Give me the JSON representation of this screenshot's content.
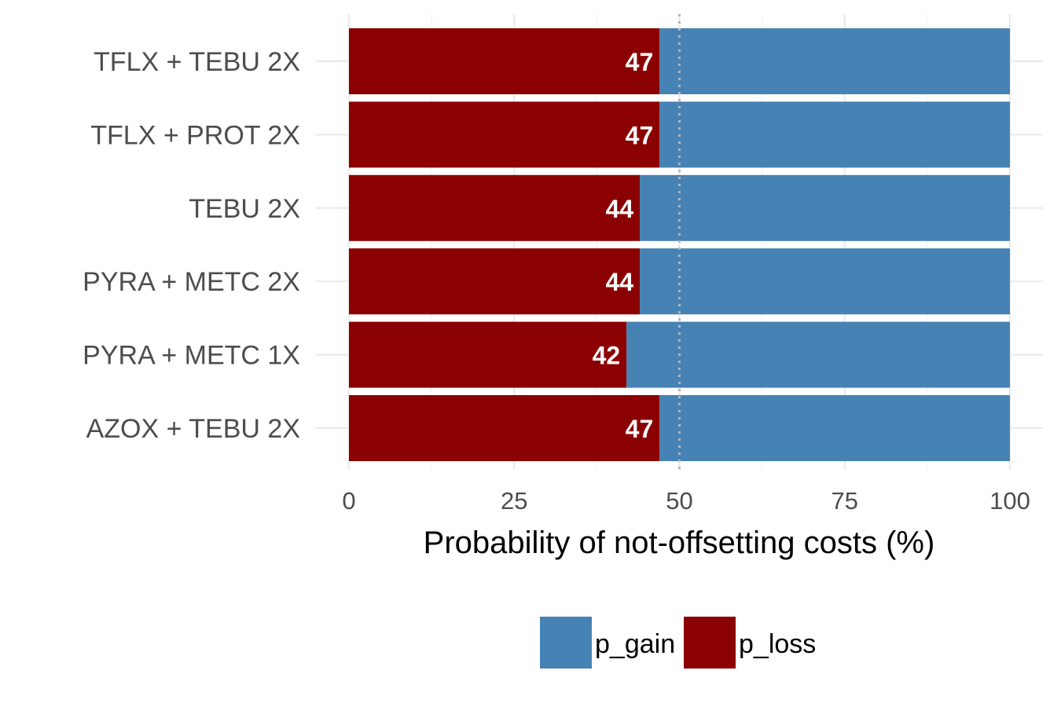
{
  "chart_data": {
    "type": "bar",
    "orientation": "horizontal",
    "stacked": true,
    "categories": [
      "TFLX + TEBU 2X",
      "TFLX + PROT 2X",
      "TEBU 2X",
      "PYRA + METC 2X",
      "PYRA + METC 1X",
      "AZOX + TEBU 2X"
    ],
    "series": [
      {
        "name": "p_loss",
        "color": "#8B0000",
        "values": [
          47,
          47,
          44,
          44,
          42,
          47
        ]
      },
      {
        "name": "p_gain",
        "color": "#4682B4",
        "values": [
          53,
          53,
          56,
          56,
          58,
          53
        ]
      }
    ],
    "data_labels": [
      "47",
      "47",
      "44",
      "44",
      "42",
      "47"
    ],
    "xlabel": "Probability of not-offsetting costs (%)",
    "ylabel": "",
    "xlim": [
      0,
      100
    ],
    "xticks": [
      0,
      25,
      50,
      75,
      100
    ],
    "xtick_labels": [
      "0",
      "25",
      "50",
      "75",
      "100"
    ],
    "reference_line": {
      "x": 50,
      "style": "dotted",
      "color": "#b0b8c0"
    },
    "grid": true,
    "legend": {
      "position": "bottom",
      "entries": [
        "p_gain",
        "p_loss"
      ]
    }
  }
}
